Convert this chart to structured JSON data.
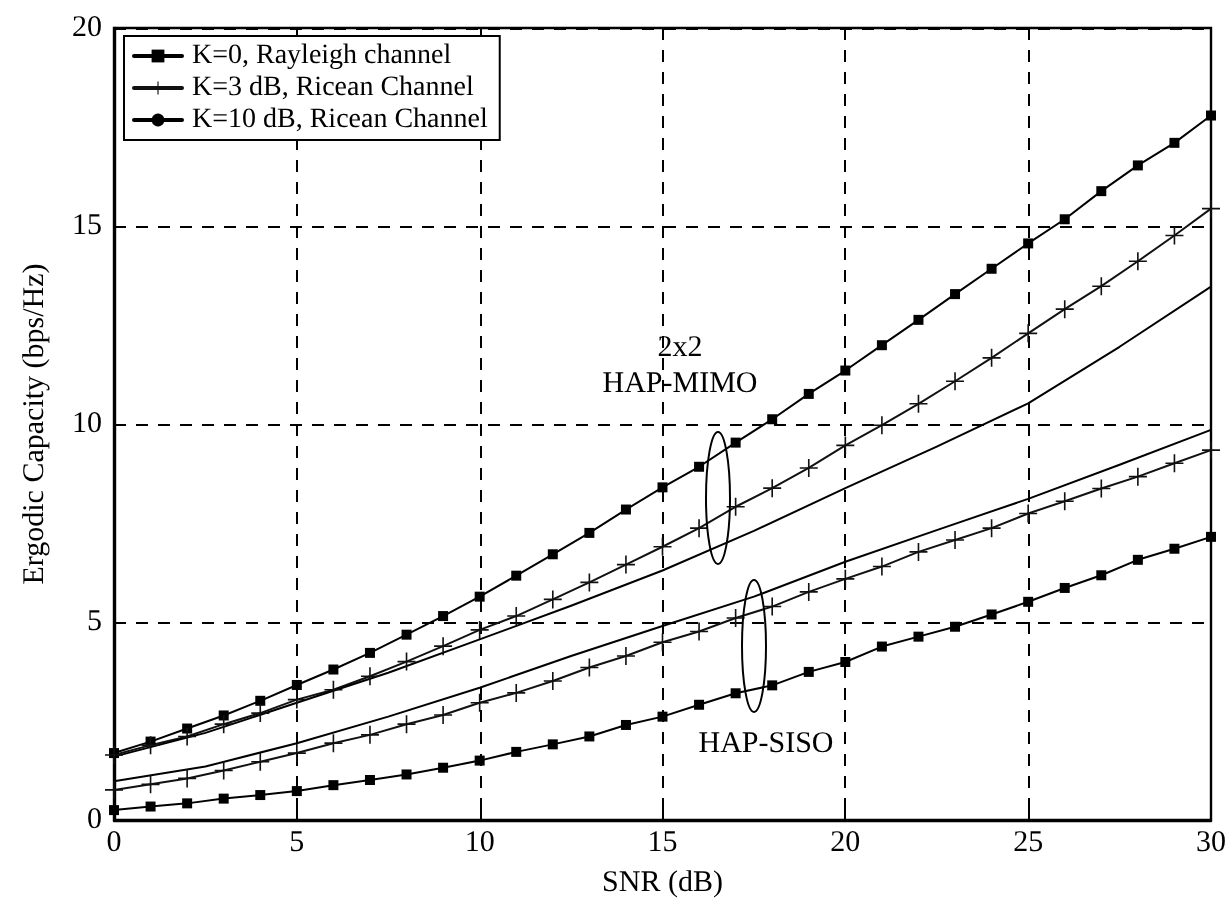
{
  "chart_data": {
    "type": "line",
    "xlabel": "SNR (dB)",
    "ylabel": "Ergodic Capacity (bps/Hz)",
    "x": [
      0,
      1,
      2,
      3,
      4,
      5,
      6,
      7,
      8,
      9,
      10,
      11,
      12,
      13,
      14,
      15,
      16,
      17,
      18,
      19,
      20,
      21,
      22,
      23,
      24,
      25,
      26,
      27,
      28,
      29,
      30
    ],
    "series": [
      {
        "name": "K=0, Rayleigh channel",
        "color": "#000000",
        "marker": "square",
        "values": [
          1.69,
          1.98,
          2.31,
          2.64,
          3.01,
          3.41,
          3.8,
          4.22,
          4.68,
          5.15,
          5.64,
          6.17,
          6.71,
          7.25,
          7.84,
          8.4,
          8.92,
          9.53,
          10.12,
          10.76,
          11.35,
          11.99,
          12.63,
          13.28,
          13.92,
          14.56,
          15.17,
          15.88,
          16.53,
          17.1,
          17.79
        ]
      },
      {
        "name": "K=3 dB, Ricean Channel",
        "color": "#111111",
        "marker": "cross",
        "values": [
          1.64,
          1.89,
          2.11,
          2.42,
          2.7,
          3.04,
          3.29,
          3.63,
          4.0,
          4.39,
          4.8,
          5.15,
          5.57,
          6.0,
          6.45,
          6.9,
          7.37,
          7.91,
          8.38,
          8.89,
          9.46,
          9.97,
          10.51,
          11.08,
          11.67,
          12.29,
          12.9,
          13.48,
          14.11,
          14.76,
          15.44
        ]
      },
      {
        "name": "K=10 dB, Ricean Channel",
        "color": "#000000",
        "marker": "none",
        "x": [
          0,
          2.5,
          5,
          7.5,
          10,
          12.5,
          15,
          17.5,
          20,
          22.5,
          25,
          27.5,
          30
        ],
        "values": [
          1.6,
          2.2,
          2.96,
          3.72,
          4.56,
          5.41,
          6.3,
          7.3,
          8.38,
          9.43,
          10.52,
          11.95,
          13.47
        ]
      },
      {
        "color": "#000000",
        "marker": "square",
        "values": [
          0.25,
          0.34,
          0.42,
          0.54,
          0.63,
          0.73,
          0.88,
          1.01,
          1.15,
          1.32,
          1.5,
          1.72,
          1.91,
          2.11,
          2.4,
          2.61,
          2.91,
          3.2,
          3.4,
          3.74,
          3.99,
          4.38,
          4.63,
          4.88,
          5.19,
          5.51,
          5.86,
          6.18,
          6.57,
          6.85,
          7.15
        ]
      },
      {
        "color": "#111111",
        "marker": "cross",
        "values": [
          0.76,
          0.9,
          1.05,
          1.25,
          1.47,
          1.69,
          1.94,
          2.15,
          2.42,
          2.65,
          2.96,
          3.21,
          3.51,
          3.85,
          4.14,
          4.49,
          4.76,
          5.1,
          5.39,
          5.76,
          6.09,
          6.4,
          6.77,
          7.07,
          7.37,
          7.74,
          8.05,
          8.37,
          8.67,
          9.01,
          9.34
        ]
      },
      {
        "color": "#000000",
        "marker": "none",
        "x": [
          0,
          2.5,
          5,
          7.5,
          10,
          12.5,
          15,
          17.5,
          20,
          22.5,
          25,
          27.5,
          30
        ],
        "values": [
          0.98,
          1.35,
          1.94,
          2.61,
          3.34,
          4.14,
          4.9,
          5.64,
          6.52,
          7.32,
          8.11,
          8.97,
          9.85
        ]
      }
    ],
    "annotations": [
      "2x2\nHAP-MIMO",
      "HAP-SISO"
    ],
    "xlim": [
      0,
      30
    ],
    "xticks": [
      0,
      5,
      10,
      15,
      20,
      25,
      30
    ],
    "ylim": [
      0,
      20
    ],
    "yticks": [
      0,
      5,
      10,
      15,
      20
    ],
    "grid": true,
    "legend": "top left",
    "line_style": "solid"
  }
}
